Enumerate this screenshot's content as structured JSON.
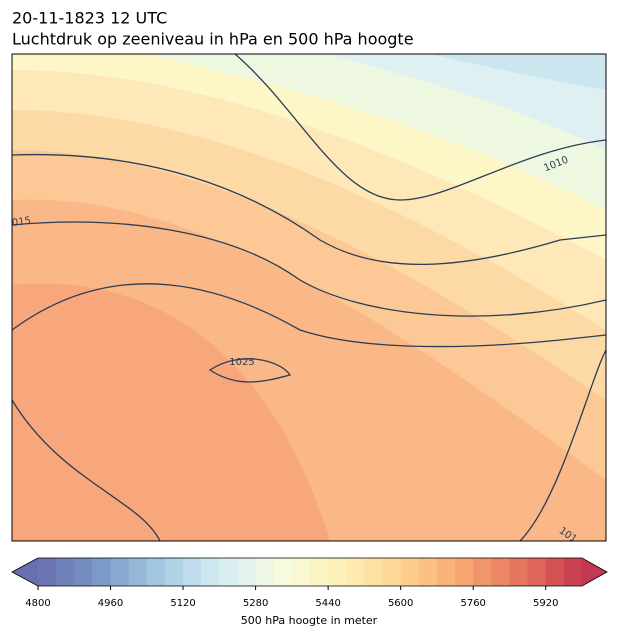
{
  "header": {
    "title": "20-11-1823 12 UTC",
    "subtitle": "Luchtdruk op zeeniveau in hPa en 500 hPa hoogte"
  },
  "map": {
    "contour_labels": [
      "1010",
      "015",
      "1025",
      "101"
    ]
  },
  "colorbar": {
    "label": "500 hPa hoogte in meter",
    "lim": [
      4800,
      6000
    ],
    "step": 40,
    "ticks": [
      4800,
      4960,
      5120,
      5280,
      5440,
      5600,
      5760,
      5920
    ],
    "colors": [
      "#6a6fb0",
      "#7a97c6",
      "#a3c9e0",
      "#d4ecf4",
      "#f6fbe0",
      "#fef2b8",
      "#fdd391",
      "#f8a872",
      "#e5735d",
      "#c4394f"
    ]
  }
}
